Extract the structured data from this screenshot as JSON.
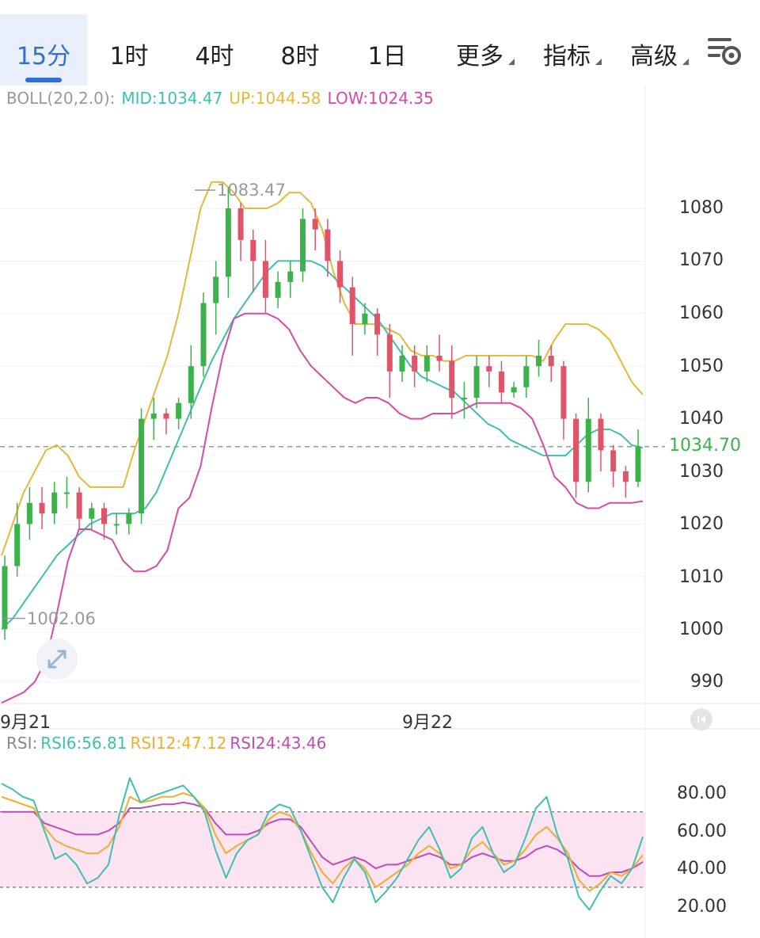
{
  "timeframes": [
    {
      "label": "15分",
      "active": true
    },
    {
      "label": "1时"
    },
    {
      "label": "4时"
    },
    {
      "label": "8时"
    },
    {
      "label": "1日"
    },
    {
      "label": "更多",
      "dropdown": true
    },
    {
      "label": "指标",
      "dropdown": true
    },
    {
      "label": "高级",
      "dropdown": true
    }
  ],
  "settings_icon": "chart-settings-icon",
  "colors": {
    "accent": "#2f6fd6",
    "up": "#3bb34a",
    "down": "#e0546a",
    "mid": "#3fbfae",
    "upper": "#e6b83a",
    "lower": "#d64aa8",
    "rsi6": "#3fbfae",
    "rsi12": "#f0ad2e",
    "rsi24": "#c04ab8",
    "rsi_band": "#fbe3f2"
  },
  "boll": {
    "name": "BOLL(20,2.0):",
    "mid_label": "MID:1034.47",
    "up_label": "UP:1044.58",
    "low_label": "LOW:1024.35"
  },
  "price_axis": [
    "1080",
    "1070",
    "1060",
    "1050",
    "1040",
    "1030",
    "1020",
    "1010",
    "1000",
    "990"
  ],
  "current_price": "1034.70",
  "high_marker": "1083.47",
  "low_marker": "1002.06",
  "date_labels": [
    "9月21",
    "9月22"
  ],
  "rsi": {
    "name": "RSI:",
    "rsi6_label": "RSI6:56.81",
    "rsi12_label": "RSI12:47.12",
    "rsi24_label": "RSI24:43.46",
    "axis": [
      "80.00",
      "60.00",
      "40.00",
      "20.00"
    ]
  },
  "chart_data": {
    "type": "line",
    "series": [
      {
        "name": "MID",
        "values": [
          1000,
          1002,
          1005,
          1008,
          1011,
          1014,
          1016,
          1018,
          1020,
          1021,
          1022,
          1022,
          1022,
          1023,
          1026,
          1031,
          1036,
          1041,
          1046,
          1051,
          1055,
          1059,
          1062,
          1065,
          1068,
          1070,
          1070,
          1070,
          1070,
          1069,
          1067,
          1065,
          1063,
          1061,
          1059,
          1056,
          1053,
          1050,
          1048,
          1047,
          1046,
          1045,
          1043,
          1041,
          1039,
          1038,
          1036,
          1035,
          1034,
          1033,
          1033,
          1033,
          1035,
          1037,
          1038,
          1038,
          1037,
          1035,
          1034.47
        ]
      },
      {
        "name": "UP",
        "values": [
          1014,
          1020,
          1026,
          1030,
          1034,
          1035,
          1033,
          1029,
          1027,
          1027,
          1027,
          1027,
          1034,
          1040,
          1046,
          1052,
          1060,
          1070,
          1080,
          1085,
          1085,
          1083,
          1080,
          1080,
          1080,
          1081,
          1083,
          1083,
          1081,
          1076,
          1068,
          1062,
          1058,
          1058,
          1058,
          1057,
          1056,
          1053,
          1052,
          1052,
          1051,
          1051,
          1052,
          1052,
          1052,
          1052,
          1052,
          1052,
          1052,
          1051,
          1055,
          1058,
          1058,
          1058,
          1057,
          1055,
          1051,
          1047,
          1044.58
        ]
      },
      {
        "name": "LOW",
        "values": [
          986,
          987,
          988,
          990,
          994,
          1003,
          1013,
          1019,
          1019,
          1018,
          1017,
          1013,
          1011,
          1011,
          1012,
          1015,
          1023,
          1025,
          1031,
          1042,
          1052,
          1059,
          1060,
          1060,
          1060,
          1059,
          1057,
          1053,
          1050,
          1048,
          1046,
          1044,
          1043,
          1044,
          1044,
          1043,
          1041,
          1040,
          1040,
          1041,
          1041,
          1041,
          1042,
          1043,
          1043,
          1043,
          1043,
          1042,
          1040,
          1035,
          1029,
          1027,
          1024,
          1023,
          1023,
          1024,
          1024,
          1024,
          1024.35
        ]
      },
      {
        "name": "RSI6",
        "values": [
          85,
          82,
          78,
          76,
          60,
          45,
          48,
          42,
          32,
          35,
          42,
          68,
          88,
          75,
          78,
          80,
          82,
          84,
          78,
          70,
          50,
          35,
          48,
          55,
          58,
          70,
          74,
          72,
          60,
          45,
          30,
          22,
          35,
          45,
          38,
          22,
          28,
          35,
          45,
          55,
          62,
          50,
          35,
          40,
          56,
          62,
          48,
          38,
          42,
          56,
          72,
          78,
          58,
          45,
          25,
          18,
          28,
          36,
          32,
          40,
          56.81
        ]
      },
      {
        "name": "RSI12",
        "values": [
          78,
          76,
          74,
          72,
          62,
          55,
          52,
          50,
          48,
          48,
          52,
          62,
          78,
          75,
          76,
          78,
          78,
          80,
          78,
          72,
          58,
          48,
          52,
          55,
          58,
          66,
          70,
          68,
          60,
          48,
          38,
          32,
          40,
          45,
          40,
          30,
          34,
          38,
          42,
          48,
          52,
          48,
          40,
          42,
          50,
          54,
          48,
          42,
          44,
          50,
          58,
          62,
          56,
          48,
          34,
          28,
          32,
          38,
          36,
          40,
          47.12
        ]
      },
      {
        "name": "RSI24",
        "values": [
          70,
          70,
          70,
          70,
          64,
          62,
          60,
          58,
          58,
          58,
          60,
          64,
          72,
          72,
          73,
          74,
          74,
          75,
          74,
          72,
          64,
          58,
          58,
          58,
          60,
          64,
          66,
          66,
          62,
          54,
          46,
          42,
          44,
          46,
          44,
          40,
          42,
          42,
          44,
          46,
          48,
          46,
          42,
          42,
          46,
          48,
          46,
          44,
          44,
          46,
          50,
          52,
          50,
          46,
          40,
          36,
          36,
          38,
          38,
          40,
          43.46
        ]
      }
    ],
    "price_ylim": [
      985,
      1090
    ],
    "rsi_ylim": [
      10,
      95
    ],
    "rsi_band": [
      30,
      70
    ],
    "last_price": 1034.7,
    "high": 1083.47,
    "low": 1002.06,
    "candles": [
      [
        1000,
        1012,
        998,
        1014
      ],
      [
        1012,
        1020,
        1010,
        1024
      ],
      [
        1020,
        1024,
        1017,
        1027
      ],
      [
        1024,
        1022,
        1019,
        1027
      ],
      [
        1022,
        1026,
        1020,
        1028
      ],
      [
        1026,
        1026,
        1023,
        1029
      ],
      [
        1026,
        1021,
        1019,
        1027
      ],
      [
        1021,
        1023,
        1019,
        1024
      ],
      [
        1023,
        1020,
        1017,
        1024
      ],
      [
        1020,
        1020,
        1018,
        1022
      ],
      [
        1020,
        1022,
        1018,
        1023
      ],
      [
        1022,
        1040,
        1020,
        1042
      ],
      [
        1040,
        1041,
        1036,
        1044
      ],
      [
        1041,
        1040,
        1037,
        1042
      ],
      [
        1040,
        1043,
        1038,
        1044
      ],
      [
        1043,
        1050,
        1040,
        1054
      ],
      [
        1050,
        1062,
        1048,
        1064
      ],
      [
        1062,
        1067,
        1056,
        1070
      ],
      [
        1067,
        1080,
        1063,
        1084
      ],
      [
        1080,
        1074,
        1070,
        1081
      ],
      [
        1074,
        1070,
        1064,
        1076
      ],
      [
        1070,
        1063,
        1060,
        1074
      ],
      [
        1063,
        1066,
        1061,
        1068
      ],
      [
        1066,
        1068,
        1063,
        1070
      ],
      [
        1068,
        1078,
        1066,
        1080
      ],
      [
        1078,
        1076,
        1072,
        1080
      ],
      [
        1076,
        1070,
        1067,
        1078
      ],
      [
        1070,
        1065,
        1062,
        1072
      ],
      [
        1065,
        1058,
        1052,
        1067
      ],
      [
        1058,
        1060,
        1056,
        1062
      ],
      [
        1060,
        1056,
        1052,
        1061
      ],
      [
        1056,
        1049,
        1044,
        1058
      ],
      [
        1049,
        1052,
        1047,
        1054
      ],
      [
        1052,
        1049,
        1046,
        1054
      ],
      [
        1049,
        1052,
        1047,
        1054
      ],
      [
        1052,
        1051,
        1049,
        1056
      ],
      [
        1051,
        1044,
        1040,
        1054
      ],
      [
        1044,
        1044,
        1040,
        1047
      ],
      [
        1044,
        1050,
        1042,
        1052
      ],
      [
        1050,
        1049,
        1046,
        1052
      ],
      [
        1049,
        1045,
        1043,
        1051
      ],
      [
        1045,
        1046,
        1044,
        1047
      ],
      [
        1046,
        1050,
        1044,
        1052
      ],
      [
        1050,
        1052,
        1048,
        1055
      ],
      [
        1052,
        1050,
        1047,
        1054
      ],
      [
        1050,
        1040,
        1036,
        1051
      ],
      [
        1040,
        1028,
        1025,
        1041
      ],
      [
        1028,
        1040,
        1026,
        1044
      ],
      [
        1040,
        1034,
        1030,
        1041
      ],
      [
        1034,
        1030,
        1027,
        1035
      ],
      [
        1030,
        1028,
        1025,
        1031
      ],
      [
        1028,
        1034.7,
        1027,
        1038
      ]
    ]
  }
}
